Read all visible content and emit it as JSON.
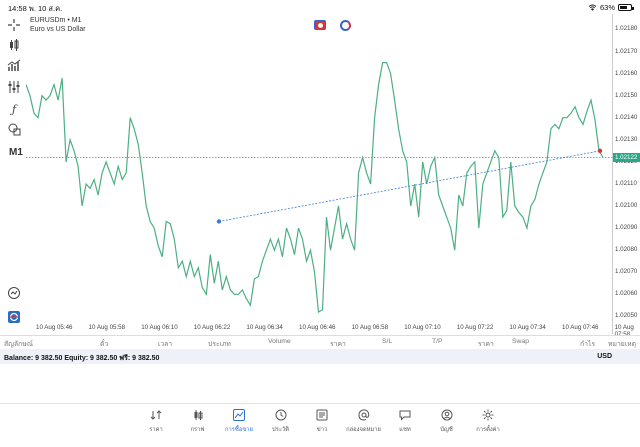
{
  "status_bar": {
    "time": "14:58",
    "date": "พ. 10 ส.ค.",
    "battery": "63%"
  },
  "chart": {
    "symbol": "EURUSDm • M1",
    "description": "Euro vs US Dollar",
    "timeframe": "M1",
    "current_price": "1.02122",
    "price_ticks": [
      "1.02180",
      "1.02170",
      "1.02160",
      "1.02150",
      "1.02140",
      "1.02130",
      "1.02120",
      "1.02110",
      "1.02100",
      "1.02090",
      "1.02080",
      "1.02070",
      "1.02060",
      "1.02050"
    ],
    "time_ticks": [
      "10 Aug 05:46",
      "10 Aug 05:58",
      "10 Aug 06:10",
      "10 Aug 06:22",
      "10 Aug 06:34",
      "10 Aug 06:46",
      "10 Aug 06:58",
      "10 Aug 07:10",
      "10 Aug 07:22",
      "10 Aug 07:34",
      "10 Aug 07:46",
      "10 Aug 07:58"
    ],
    "line_color": "#4caf84",
    "trend_color": "#3b7fd0"
  },
  "chart_data": {
    "type": "line",
    "series": [
      {
        "values": [
          1.02155,
          1.0215,
          1.02142,
          1.0214,
          1.0215,
          1.02148,
          1.0215,
          1.02155,
          1.02148,
          1.02158,
          1.0212,
          1.0213,
          1.02125,
          1.02118,
          1.021,
          1.0211,
          1.02108,
          1.02112,
          1.02105,
          1.02115,
          1.0212,
          1.02115,
          1.0211,
          1.02118,
          1.02112,
          1.02115,
          1.0214,
          1.02135,
          1.02128,
          1.02115,
          1.021,
          1.02093,
          1.0209,
          1.02082,
          1.02077,
          1.02093,
          1.02092,
          1.02085,
          1.02072,
          1.02075,
          1.02068,
          1.02075,
          1.02068,
          1.02072,
          1.02063,
          1.0206,
          1.02078,
          1.02065,
          1.02075,
          1.02062,
          1.02068,
          1.02062,
          1.0206,
          1.0206,
          1.02062,
          1.02058,
          1.02055,
          1.02067,
          1.02068,
          1.02075,
          1.0208,
          1.02085,
          1.0208,
          1.02085,
          1.02077,
          1.0209,
          1.02085,
          1.02078,
          1.0209,
          1.02085,
          1.02075,
          1.0208,
          1.0207,
          1.02052,
          1.02053,
          1.02095,
          1.0208,
          1.0209,
          1.021,
          1.02085,
          1.02092,
          1.02085,
          1.0208,
          1.02115,
          1.02122,
          1.02115,
          1.0211,
          1.0214,
          1.02155,
          1.02165,
          1.02165,
          1.0216,
          1.02148,
          1.02135,
          1.02125,
          1.0212,
          1.021,
          1.0211,
          1.02095,
          1.0212,
          1.0211,
          1.02118,
          1.02122,
          1.02105,
          1.021,
          1.02095,
          1.0209,
          1.0208,
          1.02105,
          1.021,
          1.02115,
          1.02118,
          1.0212,
          1.0209,
          1.0211,
          1.02115,
          1.0212,
          1.02125,
          1.02122,
          1.02095,
          1.02098,
          1.0212,
          1.021,
          1.02097,
          1.02095,
          1.0209,
          1.021,
          1.02103,
          1.0211,
          1.02115,
          1.0212,
          1.02135,
          1.02137,
          1.02135,
          1.0214,
          1.0214,
          1.02142,
          1.02145,
          1.0214,
          1.02137,
          1.02143,
          1.02148,
          1.02139,
          1.02125,
          1.02122
        ]
      }
    ],
    "ylim": [
      1.02047,
      1.02187
    ],
    "trendline": {
      "from_value": 1.02093,
      "to_value": 1.02125
    },
    "grid": false,
    "current_price_line": 1.02122
  },
  "trade_header": [
    "สัญลักษณ์",
    "ตั๋ว",
    "เวลา",
    "ประเภท",
    "Volume",
    "ราคา",
    "S/L",
    "T/P",
    "ราคา",
    "Swap",
    "กำไร",
    "หมายเหตุ"
  ],
  "balance": {
    "text": "Balance: 9 382.50 Equity: 9 382.50 ฟรี: 9 382.50",
    "currency": "USD"
  },
  "nav": [
    {
      "label": "ราคา",
      "icon": "swap-arrows-icon"
    },
    {
      "label": "กราฟ",
      "icon": "candlestick-icon"
    },
    {
      "label": "การซื้อขาย",
      "icon": "trade-chart-icon",
      "active": true
    },
    {
      "label": "ประวัติ",
      "icon": "history-clock-icon"
    },
    {
      "label": "ข่าว",
      "icon": "news-icon"
    },
    {
      "label": "กล่องจดหมาย",
      "icon": "at-mail-icon"
    },
    {
      "label": "แชท",
      "icon": "chat-icon"
    },
    {
      "label": "บัญชี",
      "icon": "account-icon"
    },
    {
      "label": "การตั้งค่า",
      "icon": "settings-gear-icon"
    }
  ]
}
